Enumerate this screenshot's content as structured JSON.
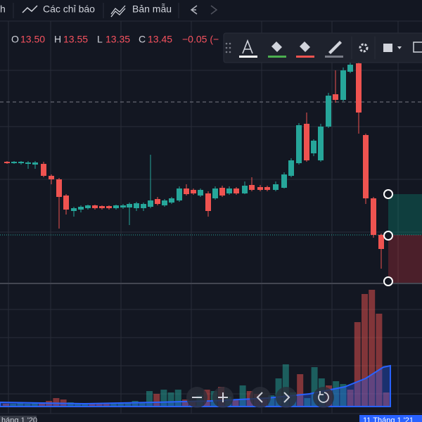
{
  "toolbar": {
    "cut_item": "h",
    "indicators": "Các chỉ báo",
    "templates": "Bản mẫu"
  },
  "legend": {
    "open_label": "O",
    "open": "13.50",
    "high_label": "H",
    "high": "13.55",
    "low_label": "L",
    "low": "13.35",
    "close_label": "C",
    "close": "13.45",
    "change": "−0.05 (−"
  },
  "time_axis": {
    "left_label": "háng 1 '20",
    "cursor_label": "11 Tháng 1 '21"
  }
}
